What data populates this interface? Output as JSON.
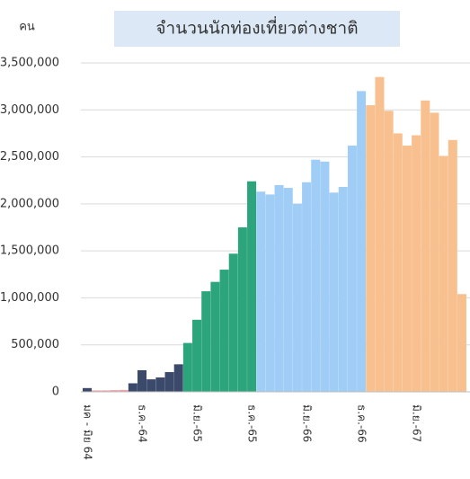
{
  "chart_data": {
    "type": "bar",
    "title": "จำนวนนักท่องเที่ยวต่างชาติ",
    "y_label": "คน",
    "categories": [
      "มค - มิย 64",
      null,
      null,
      null,
      null,
      null,
      "ธ.ค.-64",
      null,
      null,
      null,
      null,
      null,
      "มิ.ย.-65",
      null,
      null,
      null,
      null,
      null,
      "ธ.ค.-65",
      null,
      null,
      null,
      null,
      null,
      "มิ.ย.-66",
      null,
      null,
      null,
      null,
      null,
      "ธ.ค.-66",
      null,
      null,
      null,
      null,
      null,
      "มิ.ย.-67",
      null,
      null,
      null,
      null,
      null
    ],
    "values": [
      40000,
      15000,
      15000,
      18000,
      20000,
      91000,
      230000,
      133000,
      153000,
      210000,
      293000,
      520000,
      767000,
      1070000,
      1170000,
      1300000,
      1470000,
      1750000,
      2240000,
      2130000,
      2100000,
      2200000,
      2170000,
      2000000,
      2230000,
      2470000,
      2450000,
      2120000,
      2180000,
      2620000,
      3200000,
      3050000,
      3350000,
      2990000,
      2750000,
      2620000,
      2730000,
      3100000,
      2970000,
      2510000,
      2680000,
      1040000
    ],
    "colors": [
      "#3b4a6b",
      "#e8a2a2",
      "#e8a2a2",
      "#e8a2a2",
      "#e8a2a2",
      "#3b4a6b",
      "#3b4a6b",
      "#3b4a6b",
      "#3b4a6b",
      "#3b4a6b",
      "#3b4a6b",
      "#2ca57d",
      "#2ca57d",
      "#2ca57d",
      "#2ca57d",
      "#2ca57d",
      "#2ca57d",
      "#2ca57d",
      "#2ca57d",
      "#9fcdf5",
      "#9fcdf5",
      "#9fcdf5",
      "#9fcdf5",
      "#9fcdf5",
      "#9fcdf5",
      "#9fcdf5",
      "#9fcdf5",
      "#9fcdf5",
      "#9fcdf5",
      "#9fcdf5",
      "#9fcdf5",
      "#f8c08e",
      "#f8c08e",
      "#f8c08e",
      "#f8c08e",
      "#f8c08e",
      "#f8c08e",
      "#f8c08e",
      "#f8c08e",
      "#f8c08e",
      "#f8c08e",
      "#f8c08e"
    ],
    "ylim": [
      0,
      3500000
    ],
    "yticks": [
      0,
      {
        "value": 500000,
        "label": "500,000"
      },
      {
        "value": 1000000,
        "label": "1,000,000"
      },
      {
        "value": 1500000,
        "label": "1,500,000"
      },
      {
        "value": 2000000,
        "label": "2,000,000"
      },
      {
        "value": 2500000,
        "label": "2,500,000"
      },
      {
        "value": 3000000,
        "label": "3,000,000"
      },
      {
        "value": 3500000,
        "label": "3,500,000"
      }
    ],
    "grid": true
  }
}
